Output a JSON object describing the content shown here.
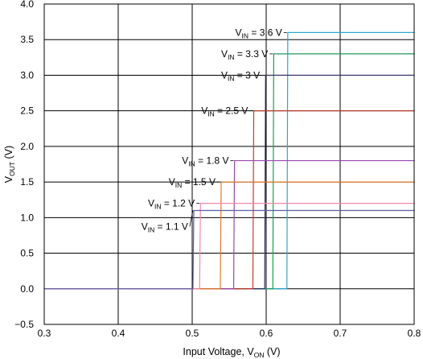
{
  "chart_data": {
    "type": "line",
    "title": "",
    "xlabel": {
      "main": "Input Voltage, V",
      "sub": "ON",
      "unit": " (V)"
    },
    "ylabel": {
      "main": "V",
      "sub": "OUT",
      "unit": " (V)"
    },
    "xlim": [
      0.3,
      0.8
    ],
    "ylim": [
      -0.5,
      4.0
    ],
    "x_ticks": [
      0.3,
      0.4,
      0.5,
      0.6,
      0.7,
      0.8
    ],
    "x_tick_labels": [
      "0.3",
      "0.4",
      "0.5",
      "0.6",
      "0.7",
      "0.8"
    ],
    "y_ticks": [
      -0.5,
      0.0,
      0.5,
      1.0,
      1.5,
      2.0,
      2.5,
      3.0,
      3.5,
      4.0
    ],
    "y_tick_labels": [
      "−0.5",
      "0.0",
      "0.5",
      "1.0",
      "1.5",
      "2.0",
      "2.5",
      "3.0",
      "3.5",
      "4.0"
    ],
    "grid": true,
    "legend": "none",
    "series": [
      {
        "vin": 1.1,
        "threshold": 0.501,
        "level": 1.1,
        "color": "#5b5ea6",
        "label": {
          "main": "V",
          "sub": "IN",
          "rest": " = 1.1 V"
        }
      },
      {
        "vin": 1.2,
        "threshold": 0.51,
        "level": 1.2,
        "color": "#f08aa8",
        "label": {
          "main": "V",
          "sub": "IN",
          "rest": " = 1.2 V"
        }
      },
      {
        "vin": 1.5,
        "threshold": 0.538,
        "level": 1.5,
        "color": "#e07828",
        "label": {
          "main": "V",
          "sub": "IN",
          "rest": " = 1.5 V"
        }
      },
      {
        "vin": 1.8,
        "threshold": 0.556,
        "level": 1.8,
        "color": "#9a48b0",
        "label": {
          "main": "V",
          "sub": "IN",
          "rest": " = 1.8 V"
        }
      },
      {
        "vin": 2.5,
        "threshold": 0.582,
        "level": 2.5,
        "color": "#c83a2a",
        "label": {
          "main": "V",
          "sub": "IN",
          "rest": " = 2.5 V"
        }
      },
      {
        "vin": 3.0,
        "threshold": 0.598,
        "level": 3.0,
        "color": "#2a2a60",
        "label": {
          "main": "V",
          "sub": "IN",
          "rest": " = 3 V"
        }
      },
      {
        "vin": 3.3,
        "threshold": 0.609,
        "level": 3.3,
        "color": "#1f9a5a",
        "label": {
          "main": "V",
          "sub": "IN",
          "rest": " = 3.3 V"
        }
      },
      {
        "vin": 3.6,
        "threshold": 0.628,
        "level": 3.6,
        "color": "#2aa8d0",
        "label": {
          "main": "V",
          "sub": "IN",
          "rest": " = 3.6 V"
        }
      }
    ]
  }
}
